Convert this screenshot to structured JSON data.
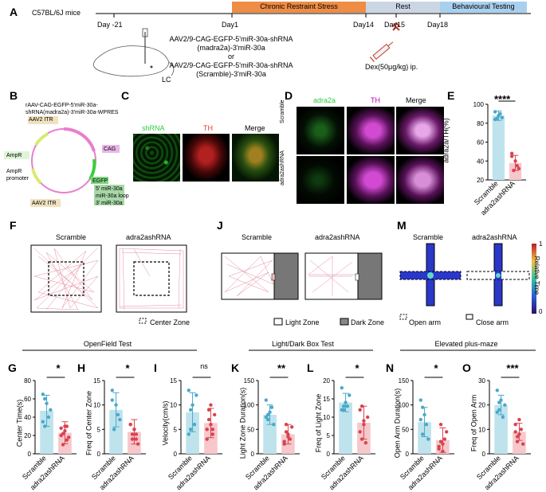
{
  "panelA": {
    "letter": "A",
    "mice": "C57BL/6J mice",
    "days": [
      "Day -21",
      "Day1",
      "Day14",
      "Day15",
      "Day18"
    ],
    "phases": [
      {
        "label": "Chronic Restraint Stress",
        "color": "#ef8c45"
      },
      {
        "label": "Rest",
        "color": "#cbd6e4"
      },
      {
        "label": "Behavioural Testing",
        "color": "#a8d0ee"
      }
    ],
    "virus1a": "AAV2/9-CAG-EGFP-5'miR-30a-shRNA",
    "virus1b": "(madra2a)-3'miR-30a",
    "or": "or",
    "virus2a": "AAV2/9-CAG-EGFP-5'miR-30a-shRNA",
    "virus2b": "(Scramble)-3'miR-30a",
    "lc": "LC",
    "dex": "Dex(50μg/kg) ip."
  },
  "panelB": {
    "letter": "B",
    "title1": "rAAV-CAG-EGFP-5'miR-30a-",
    "title2": "shRNA(madra2a)-3'miR-30a-WPRES",
    "features": [
      "AAV2 ITR",
      "CAG",
      "AmpR",
      "AmpR",
      "promoter",
      "EGFP",
      "5' miR-30a",
      "miR-30a loop",
      "3' miR-30a",
      "AAV2 ITR"
    ]
  },
  "panelC": {
    "letter": "C",
    "channels": [
      "shRNA",
      "TH",
      "Merge"
    ]
  },
  "panelD": {
    "letter": "D",
    "channels": [
      "adra2a",
      "TH",
      "Merge"
    ],
    "rows": [
      "Scramble",
      "adra2ashRNA"
    ]
  },
  "panelE": {
    "letter": "E",
    "sig": "****",
    "ylabel": "adra2a/TH(%)",
    "ticks": [
      "100",
      "80",
      "60",
      "40",
      "20"
    ],
    "groups": [
      "Scramble",
      "adra2ashRNA"
    ]
  },
  "panelF": {
    "letter": "F",
    "groups": [
      "Scramble",
      "adra2ashRNA"
    ],
    "legend": "Center Zone"
  },
  "panelJ": {
    "letter": "J",
    "groups": [
      "Scramble",
      "adra2ashRNA"
    ],
    "legend1": "Light Zone",
    "legend2": "Dark Zone"
  },
  "panelM": {
    "letter": "M",
    "groups": [
      "Scramble",
      "adra2ashRNA"
    ],
    "cbar_top": "1",
    "cbar_bottom": "0",
    "cbar_label": "Relative Time",
    "legend1": "Open arm",
    "legend2": "Close arm"
  },
  "sections": [
    "OpenField Test",
    "Light/Dark Box Test",
    "Elevated plus-maze"
  ],
  "xlabels": [
    "Scramble",
    "adra2ashRNA"
  ],
  "bars": [
    {
      "letter": "G",
      "ylabel": "Center Time(s)",
      "sig": "*",
      "ticks": [
        "80",
        "60",
        "40",
        "20",
        "0"
      ]
    },
    {
      "letter": "H",
      "ylabel": "Freq of Center Zone",
      "sig": "*",
      "ticks": [
        "15",
        "10",
        "5",
        "0"
      ]
    },
    {
      "letter": "I",
      "ylabel": "Velocity(cm/s)",
      "sig": "ns",
      "ticks": [
        "15",
        "10",
        "5",
        "0"
      ]
    },
    {
      "letter": "K",
      "ylabel": "Light Zone Duration(s)",
      "sig": "**",
      "ticks": [
        "150",
        "100",
        "50",
        "0"
      ]
    },
    {
      "letter": "L",
      "ylabel": "Freq of Light Zone",
      "sig": "*",
      "ticks": [
        "20",
        "15",
        "10",
        "5",
        "0"
      ]
    },
    {
      "letter": "N",
      "ylabel": "Open Arm Duration(s)",
      "sig": "*",
      "ticks": [
        "150",
        "100",
        "50",
        "0"
      ]
    },
    {
      "letter": "O",
      "ylabel": "Freq of Open Arm",
      "sig": "***",
      "ticks": [
        "30",
        "20",
        "10",
        "0"
      ]
    }
  ],
  "chart_data": [
    {
      "type": "bar",
      "panel": "E",
      "categories": [
        "Scramble",
        "adra2ashRNA"
      ],
      "values": [
        88,
        38
      ],
      "errors": [
        5,
        8
      ],
      "ylim": [
        20,
        100
      ],
      "ylabel": "adra2a/TH(%)",
      "points": [
        [
          92,
          85,
          88,
          90,
          86,
          84
        ],
        [
          45,
          30,
          40,
          35,
          32,
          48
        ]
      ]
    },
    {
      "type": "bar",
      "panel": "G",
      "categories": [
        "Scramble",
        "adra2ashRNA"
      ],
      "values": [
        47,
        23
      ],
      "errors": [
        17,
        12
      ],
      "ylim": [
        0,
        80
      ],
      "ylabel": "Center Time(s)",
      "points": [
        [
          65,
          30,
          55,
          40,
          48,
          35,
          60
        ],
        [
          20,
          10,
          25,
          30,
          18,
          28,
          22,
          30,
          15
        ]
      ]
    },
    {
      "type": "bar",
      "panel": "H",
      "categories": [
        "Scramble",
        "adra2ashRNA"
      ],
      "values": [
        9,
        4.5
      ],
      "errors": [
        3.5,
        2.5
      ],
      "ylim": [
        0,
        15
      ],
      "ylabel": "Freq of Center Zone",
      "points": [
        [
          13,
          5,
          10,
          8,
          7,
          11,
          5
        ],
        [
          6,
          3,
          5,
          4,
          2,
          6,
          4,
          5,
          3
        ]
      ]
    },
    {
      "type": "bar",
      "panel": "I",
      "categories": [
        "Scramble",
        "adra2ashRNA"
      ],
      "values": [
        8.5,
        6.3
      ],
      "errors": [
        4,
        3
      ],
      "ylim": [
        0,
        15
      ],
      "ylabel": "Velocity(cm/s)",
      "points": [
        [
          13,
          5,
          10,
          6,
          12,
          4,
          9
        ],
        [
          5,
          9,
          6,
          4,
          8,
          3,
          7,
          10,
          5
        ]
      ]
    },
    {
      "type": "bar",
      "panel": "K",
      "categories": [
        "Scramble",
        "adra2ashRNA"
      ],
      "values": [
        80,
        40
      ],
      "errors": [
        20,
        20
      ],
      "ylim": [
        0,
        150
      ],
      "ylabel": "Light Zone Duration(s)",
      "points": [
        [
          110,
          70,
          85,
          95,
          60,
          75,
          80
        ],
        [
          20,
          60,
          40,
          30,
          55,
          25,
          45,
          35
        ]
      ]
    },
    {
      "type": "bar",
      "panel": "L",
      "categories": [
        "Scramble",
        "adra2ashRNA"
      ],
      "values": [
        14,
        8.5
      ],
      "errors": [
        2.5,
        4.5
      ],
      "ylim": [
        0,
        20
      ],
      "ylabel": "Freq of Light Zone",
      "points": [
        [
          18,
          12,
          14,
          13,
          16,
          12,
          13
        ],
        [
          12,
          4,
          8,
          3,
          10,
          6,
          13,
          9
        ]
      ]
    },
    {
      "type": "bar",
      "panel": "N",
      "categories": [
        "Scramble",
        "adra2ashRNA"
      ],
      "values": [
        65,
        28
      ],
      "errors": [
        30,
        25
      ],
      "ylim": [
        0,
        150
      ],
      "ylabel": "Open Arm Duration(s)",
      "points": [
        [
          110,
          40,
          80,
          60,
          30,
          70,
          95
        ],
        [
          10,
          60,
          20,
          30,
          45,
          15,
          25,
          5
        ]
      ]
    },
    {
      "type": "bar",
      "panel": "O",
      "categories": [
        "Scramble",
        "adra2ashRNA"
      ],
      "values": [
        20,
        9
      ],
      "errors": [
        4,
        3.5
      ],
      "ylim": [
        0,
        30
      ],
      "ylabel": "Freq of Open Arm",
      "points": [
        [
          26,
          18,
          22,
          15,
          20,
          17,
          21
        ],
        [
          12,
          5,
          8,
          10,
          4,
          9,
          7,
          14
        ]
      ]
    }
  ]
}
